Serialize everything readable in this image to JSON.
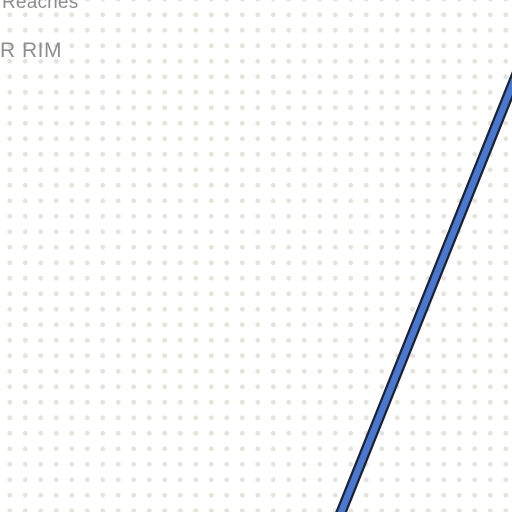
{
  "map": {
    "background_color": "#ffffff",
    "dot_color": "#e4e4dc",
    "labels": {
      "top": "Reaches",
      "rim": "R RIM"
    },
    "road": {
      "fill_color": "#4a78d0",
      "casing_color": "#1a2233"
    }
  }
}
